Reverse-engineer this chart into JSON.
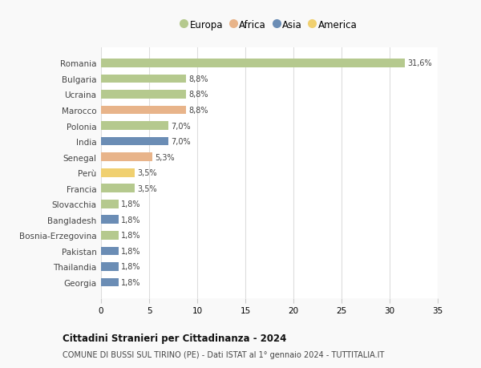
{
  "countries": [
    "Romania",
    "Bulgaria",
    "Ucraina",
    "Marocco",
    "Polonia",
    "India",
    "Senegal",
    "Perù",
    "Francia",
    "Slovacchia",
    "Bangladesh",
    "Bosnia-Erzegovina",
    "Pakistan",
    "Thailandia",
    "Georgia"
  ],
  "values": [
    31.6,
    8.8,
    8.8,
    8.8,
    7.0,
    7.0,
    5.3,
    3.5,
    3.5,
    1.8,
    1.8,
    1.8,
    1.8,
    1.8,
    1.8
  ],
  "labels": [
    "31,6%",
    "8,8%",
    "8,8%",
    "8,8%",
    "7,0%",
    "7,0%",
    "5,3%",
    "3,5%",
    "3,5%",
    "1,8%",
    "1,8%",
    "1,8%",
    "1,8%",
    "1,8%",
    "1,8%"
  ],
  "continents": [
    "Europa",
    "Europa",
    "Europa",
    "Africa",
    "Europa",
    "Asia",
    "Africa",
    "America",
    "Europa",
    "Europa",
    "Asia",
    "Europa",
    "Asia",
    "Asia",
    "Asia"
  ],
  "colors": {
    "Europa": "#b5c98e",
    "Africa": "#e8b48a",
    "Asia": "#6b8db5",
    "America": "#f0d070"
  },
  "legend_order": [
    "Europa",
    "Africa",
    "Asia",
    "America"
  ],
  "legend_colors": [
    "#b5c98e",
    "#e8b48a",
    "#6b8db5",
    "#f0d070"
  ],
  "xlim": [
    0,
    35
  ],
  "xticks": [
    0,
    5,
    10,
    15,
    20,
    25,
    30,
    35
  ],
  "title": "Cittadini Stranieri per Cittadinanza - 2024",
  "subtitle": "COMUNE DI BUSSI SUL TIRINO (PE) - Dati ISTAT al 1° gennaio 2024 - TUTTITALIA.IT",
  "background_color": "#f9f9f9",
  "bar_background": "#ffffff"
}
